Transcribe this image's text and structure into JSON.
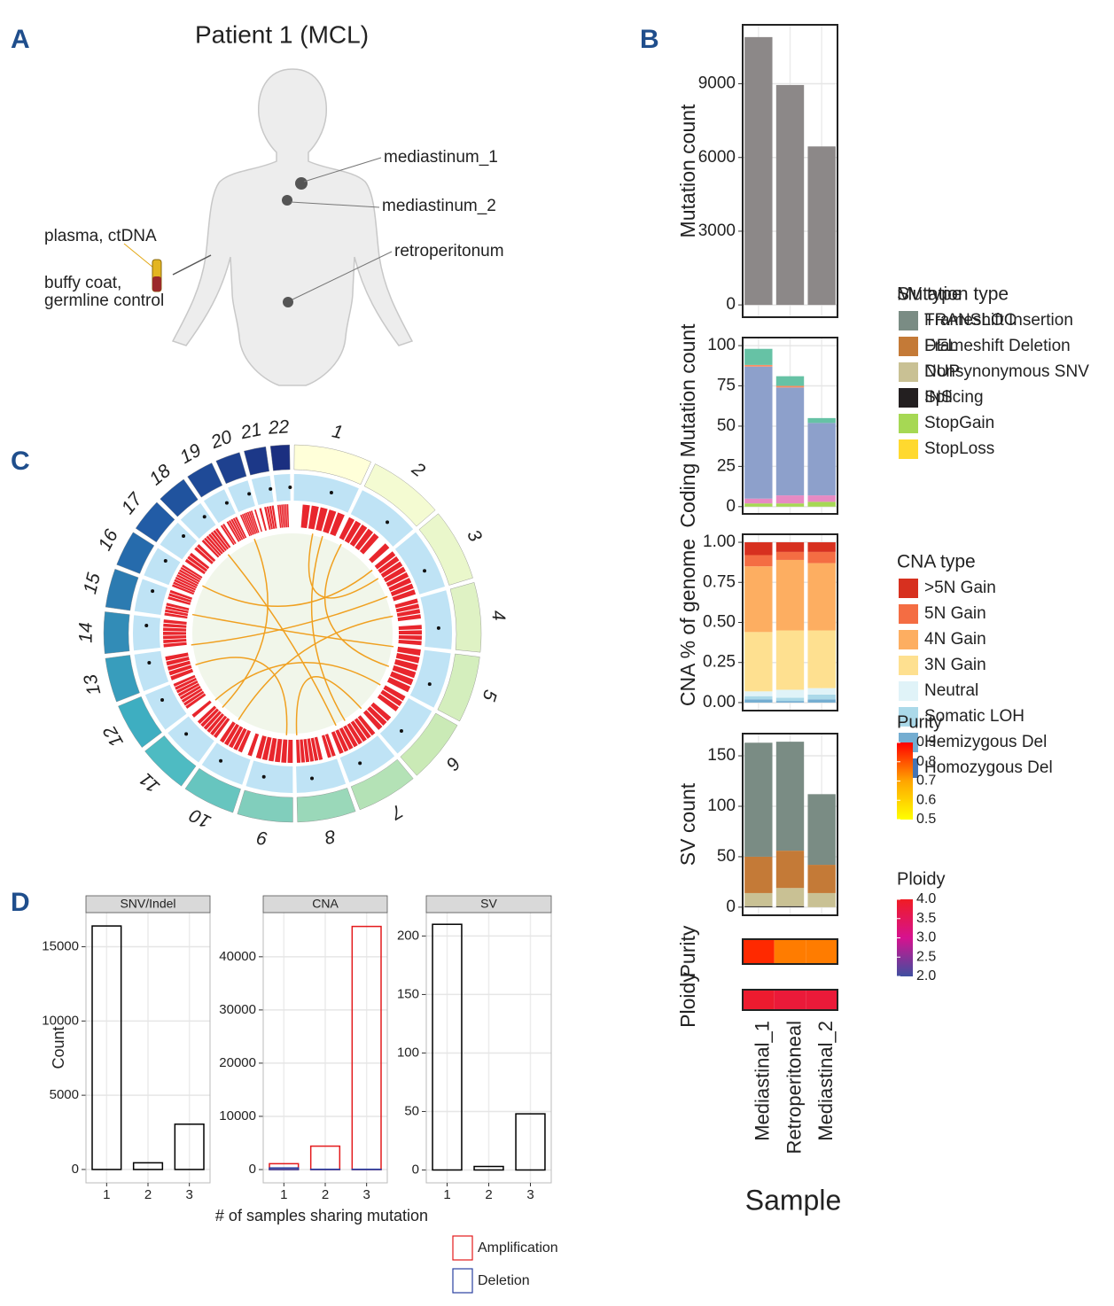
{
  "panel_labels": [
    "A",
    "B",
    "C",
    "D"
  ],
  "figure_a": {
    "title": "Patient 1 (MCL)",
    "sites": [
      "mediastinum_1",
      "mediastinum_2",
      "retroperitonum"
    ],
    "plasma": "plasma, ctDNA",
    "buffy": [
      "buffy coat,",
      "germline control"
    ]
  },
  "circos": {
    "chromosomes": [
      "1",
      "2",
      "3",
      "4",
      "5",
      "6",
      "7",
      "8",
      "9",
      "10",
      "11",
      "12",
      "13",
      "14",
      "15",
      "16",
      "17",
      "18",
      "19",
      "20",
      "21",
      "22"
    ],
    "colors": [
      "#ffffd9",
      "#c7e9b4",
      "#41b6c4",
      "#225ea8",
      "#1b2f80"
    ]
  },
  "chart_data": [
    {
      "type": "bar",
      "ylabel": "Mutation count",
      "values": [
        10900,
        8950,
        6450
      ],
      "color": "#8c8888",
      "ylim": [
        -500,
        11400
      ],
      "yticks": [
        0,
        3000,
        6000,
        9000
      ],
      "grid": true
    },
    {
      "type": "stacked_bar",
      "ylabel": "Coding Mutation count",
      "legend_title": "Mutation type",
      "ylim": [
        -4.5,
        105
      ],
      "yticks": [
        0,
        25,
        50,
        75,
        100
      ],
      "grid": true,
      "series": [
        {
          "name": "Frameshift Insertion",
          "color": "#66c2a5",
          "values": [
            10,
            6,
            3
          ]
        },
        {
          "name": "Frameshift Deletion",
          "color": "#fc8d62",
          "values": [
            1,
            1,
            0
          ]
        },
        {
          "name": "Nonsynonymous SNV",
          "color": "#8da0cb",
          "values": [
            82,
            67,
            45
          ]
        },
        {
          "name": "Splicing",
          "color": "#e78ac3",
          "values": [
            3,
            5,
            4
          ]
        },
        {
          "name": "StopGain",
          "color": "#a6d854",
          "values": [
            2,
            2,
            3
          ]
        },
        {
          "name": "StopLoss",
          "color": "#ffd92f",
          "values": [
            0,
            0,
            0
          ]
        }
      ]
    },
    {
      "type": "stacked_bar",
      "ylabel": "CNA % of genome",
      "legend_title": "CNA type",
      "ylim": [
        -0.05,
        1.05
      ],
      "grid": true,
      "yticks": [
        {
          "value": 0,
          "label": "0.00"
        },
        {
          "value": 0.25,
          "label": "0.25"
        },
        {
          "value": 0.5,
          "label": "0.50"
        },
        {
          "value": 0.75,
          "label": "0.75"
        },
        {
          "value": 1,
          "label": "1.00"
        }
      ],
      "series": [
        {
          "name": ">5N Gain",
          "color": "#d7301f",
          "values": [
            0.08,
            0.06,
            0.06
          ]
        },
        {
          "name": "5N Gain",
          "color": "#f46d43",
          "values": [
            0.07,
            0.05,
            0.07
          ]
        },
        {
          "name": "4N Gain",
          "color": "#fdae61",
          "values": [
            0.41,
            0.44,
            0.42
          ]
        },
        {
          "name": "3N Gain",
          "color": "#fee090",
          "values": [
            0.37,
            0.37,
            0.36
          ]
        },
        {
          "name": "Neutral",
          "color": "#e0f3f8",
          "values": [
            0.03,
            0.05,
            0.04
          ]
        },
        {
          "name": "Somatic LOH",
          "color": "#abd9e9",
          "values": [
            0.02,
            0.02,
            0.03
          ]
        },
        {
          "name": "Hemizygous Del",
          "color": "#74add1",
          "values": [
            0.02,
            0.01,
            0.02
          ]
        },
        {
          "name": "Homozygous Del",
          "color": "#4575b4",
          "values": [
            0,
            0,
            0
          ]
        }
      ]
    },
    {
      "type": "stacked_bar",
      "ylabel": "SV count",
      "legend_title": "SV type",
      "ylim": [
        -8,
        172
      ],
      "yticks": [
        0,
        50,
        100,
        150
      ],
      "grid": true,
      "series": [
        {
          "name": "TRANSLOC",
          "color": "#7a8c84",
          "values": [
            113,
            108,
            70
          ]
        },
        {
          "name": "DEL",
          "color": "#c47a37",
          "values": [
            36,
            37,
            28
          ]
        },
        {
          "name": "DUP",
          "color": "#c9c194",
          "values": [
            13,
            18,
            14
          ]
        },
        {
          "name": "INS",
          "color": "#231f20",
          "values": [
            1,
            1,
            0
          ]
        }
      ]
    },
    {
      "type": "heatmap",
      "ylabel": "Purity",
      "legend_title": "Purity",
      "values": [
        0.85,
        0.75,
        0.75
      ],
      "zlim": [
        0.5,
        0.9
      ],
      "zticks": [
        0.5,
        0.6,
        0.7,
        0.8,
        0.9
      ],
      "colorscale": [
        "#ffff00",
        "#ffa500",
        "#ff0000"
      ]
    },
    {
      "type": "heatmap",
      "ylabel": "Ploidy",
      "legend_title": "Ploidy",
      "values": [
        3.9,
        3.8,
        3.8
      ],
      "zlim": [
        2,
        4
      ],
      "zticks": [
        {
          "value": 2,
          "label": "2.0"
        },
        {
          "value": 2.5,
          "label": "2.5"
        },
        {
          "value": 3,
          "label": "3.0"
        },
        {
          "value": 3.5,
          "label": "3.5"
        },
        {
          "value": 4,
          "label": "4.0"
        }
      ],
      "colorscale": [
        "#3f4fa0",
        "#d6128f",
        "#f01c24"
      ],
      "categories": [
        "Mediastinal_1",
        "Retroperitoneal",
        "Mediastinal_2"
      ],
      "xlabel": "Sample"
    },
    {
      "type": "bar",
      "facet": "SNV/Indel",
      "ylabel": "Count",
      "categories": [
        "1",
        "2",
        "3"
      ],
      "values": [
        16400,
        450,
        3050
      ],
      "color": "#000000",
      "style": "outline",
      "ylim": [
        -900,
        17300
      ],
      "yticks": [
        0,
        5000,
        10000,
        15000
      ],
      "grid": true
    },
    {
      "type": "overlay_bar",
      "facet": "CNA",
      "xlabel": "# of samples sharing mutation",
      "categories": [
        "1",
        "2",
        "3"
      ],
      "ylim": [
        -2500,
        48300
      ],
      "yticks": [
        0,
        10000,
        20000,
        30000,
        40000
      ],
      "grid": true,
      "series": [
        {
          "name": "Amplification",
          "color": "#e41a1c",
          "values": [
            1100,
            4400,
            45700
          ]
        },
        {
          "name": "Deletion",
          "color": "#2a3fa0",
          "values": [
            300,
            50,
            50
          ]
        }
      ]
    },
    {
      "type": "bar",
      "facet": "SV",
      "categories": [
        "1",
        "2",
        "3"
      ],
      "values": [
        210,
        3,
        48
      ],
      "color": "#000000",
      "style": "outline",
      "ylim": [
        -11,
        220
      ],
      "yticks": [
        0,
        50,
        100,
        150,
        200
      ],
      "grid": true
    }
  ]
}
